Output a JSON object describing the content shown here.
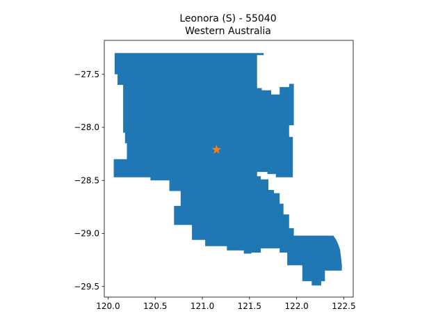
{
  "title": {
    "line1": "Leonora (S) - 55040",
    "line2": "Western Australia"
  },
  "colors": {
    "region_fill": "#1f77b4",
    "marker": "#ff7f0e",
    "axis": "#000000"
  },
  "icons": {
    "centroid_marker": "star-icon"
  },
  "chart_data": {
    "type": "map",
    "title": "Leonora (S) - 55040\nWestern Australia",
    "xlabel": "",
    "ylabel": "",
    "xlim": [
      119.96,
      122.6
    ],
    "ylim": [
      -29.6,
      -27.18
    ],
    "x_ticks": [
      120.0,
      120.5,
      121.0,
      121.5,
      122.0,
      122.5
    ],
    "x_tick_labels": [
      "120.0",
      "120.5",
      "121.0",
      "121.5",
      "122.0",
      "122.5"
    ],
    "y_ticks": [
      -27.5,
      -28.0,
      -28.5,
      -29.0,
      -29.5
    ],
    "y_tick_labels": [
      "−27.5",
      "−28.0",
      "−28.5",
      "−29.0",
      "−29.5"
    ],
    "grid": false,
    "marker": {
      "lon": 121.15,
      "lat": -28.21,
      "shape": "star"
    },
    "region_outline": [
      [
        120.07,
        -27.3
      ],
      [
        121.65,
        -27.3
      ],
      [
        121.65,
        -27.32
      ],
      [
        121.58,
        -27.32
      ],
      [
        121.58,
        -27.63
      ],
      [
        121.63,
        -27.63
      ],
      [
        121.63,
        -27.65
      ],
      [
        121.73,
        -27.65
      ],
      [
        121.73,
        -27.69
      ],
      [
        121.82,
        -27.69
      ],
      [
        121.82,
        -27.62
      ],
      [
        121.92,
        -27.62
      ],
      [
        121.92,
        -27.59
      ],
      [
        121.97,
        -27.59
      ],
      [
        121.97,
        -27.98
      ],
      [
        121.92,
        -27.98
      ],
      [
        121.92,
        -28.09
      ],
      [
        121.96,
        -28.09
      ],
      [
        121.96,
        -28.47
      ],
      [
        121.78,
        -28.47
      ],
      [
        121.78,
        -28.44
      ],
      [
        121.69,
        -28.44
      ],
      [
        121.69,
        -28.42
      ],
      [
        121.62,
        -28.42
      ],
      [
        121.58,
        -28.42
      ],
      [
        121.58,
        -28.46
      ],
      [
        121.62,
        -28.46
      ],
      [
        121.62,
        -28.49
      ],
      [
        121.7,
        -28.49
      ],
      [
        121.7,
        -28.59
      ],
      [
        121.72,
        -28.59
      ],
      [
        121.76,
        -28.59
      ],
      [
        121.76,
        -28.62
      ],
      [
        121.82,
        -28.62
      ],
      [
        121.82,
        -28.72
      ],
      [
        121.86,
        -28.72
      ],
      [
        121.86,
        -28.82
      ],
      [
        121.92,
        -28.82
      ],
      [
        121.92,
        -28.95
      ],
      [
        121.97,
        -28.95
      ],
      [
        121.97,
        -29.02
      ],
      [
        122.39,
        -29.02
      ],
      [
        122.42,
        -29.06
      ],
      [
        122.44,
        -29.1
      ],
      [
        122.46,
        -29.15
      ],
      [
        122.47,
        -29.22
      ],
      [
        122.48,
        -29.3
      ],
      [
        122.48,
        -29.35
      ],
      [
        122.38,
        -29.35
      ],
      [
        122.3,
        -29.35
      ],
      [
        122.3,
        -29.45
      ],
      [
        122.26,
        -29.45
      ],
      [
        122.26,
        -29.49
      ],
      [
        122.16,
        -29.49
      ],
      [
        122.16,
        -29.45
      ],
      [
        122.06,
        -29.45
      ],
      [
        122.06,
        -29.3
      ],
      [
        121.9,
        -29.3
      ],
      [
        121.9,
        -29.18
      ],
      [
        121.82,
        -29.18
      ],
      [
        121.82,
        -29.14
      ],
      [
        121.62,
        -29.14
      ],
      [
        121.62,
        -29.18
      ],
      [
        121.52,
        -29.18
      ],
      [
        121.52,
        -29.19
      ],
      [
        121.44,
        -29.19
      ],
      [
        121.44,
        -29.16
      ],
      [
        121.26,
        -29.16
      ],
      [
        121.26,
        -29.12
      ],
      [
        121.03,
        -29.12
      ],
      [
        121.03,
        -29.06
      ],
      [
        120.89,
        -29.06
      ],
      [
        120.89,
        -28.92
      ],
      [
        120.7,
        -28.92
      ],
      [
        120.7,
        -28.74
      ],
      [
        120.77,
        -28.74
      ],
      [
        120.77,
        -28.6
      ],
      [
        120.65,
        -28.6
      ],
      [
        120.65,
        -28.5
      ],
      [
        120.45,
        -28.5
      ],
      [
        120.45,
        -28.47
      ],
      [
        120.06,
        -28.47
      ],
      [
        120.06,
        -28.3
      ],
      [
        120.2,
        -28.3
      ],
      [
        120.2,
        -28.15
      ],
      [
        120.18,
        -28.15
      ],
      [
        120.18,
        -28.05
      ],
      [
        120.16,
        -28.05
      ],
      [
        120.16,
        -27.6
      ],
      [
        120.1,
        -27.6
      ],
      [
        120.1,
        -27.5
      ],
      [
        120.07,
        -27.5
      ]
    ]
  }
}
